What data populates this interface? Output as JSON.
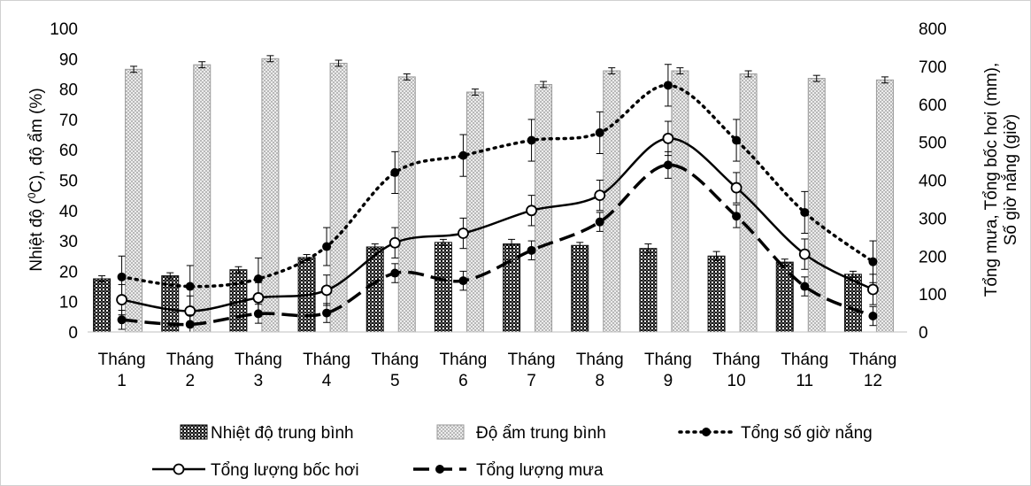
{
  "chart_data": {
    "type": "bar",
    "categories": [
      [
        "Tháng",
        "1"
      ],
      [
        "Tháng",
        "2"
      ],
      [
        "Tháng",
        "3"
      ],
      [
        "Tháng",
        "4"
      ],
      [
        "Tháng",
        "5"
      ],
      [
        "Tháng",
        "6"
      ],
      [
        "Tháng",
        "7"
      ],
      [
        "Tháng",
        "8"
      ],
      [
        "Tháng",
        "9"
      ],
      [
        "Tháng",
        "10"
      ],
      [
        "Tháng",
        "11"
      ],
      [
        "Tháng",
        "12"
      ]
    ],
    "y_left": {
      "title_parts": [
        "Nhiệt độ (",
        "0",
        "C), độ ẩm (%)"
      ],
      "range": [
        0,
        100
      ],
      "ticks": [
        "0",
        "10",
        "20",
        "30",
        "40",
        "50",
        "60",
        "70",
        "80",
        "90",
        "100"
      ]
    },
    "y_right": {
      "title_lines": [
        "Tổng mưa, Tổng bốc hơi (mm),",
        "Số giờ nắng (giờ)"
      ],
      "range": [
        0,
        800
      ],
      "ticks": [
        "0",
        "100",
        "200",
        "300",
        "400",
        "500",
        "600",
        "700",
        "800"
      ]
    },
    "grid": false,
    "legend_position": "bottom",
    "colors": {
      "dark_bar": "#1a1a1a",
      "light_bar": "#cfcfcf",
      "line": "#000000"
    },
    "series": [
      {
        "name": "Nhiệt độ trung bình",
        "type": "bar",
        "axis": "left",
        "style": "dark-hatch",
        "values": [
          17.5,
          18.5,
          20.5,
          24.5,
          28.0,
          29.5,
          29.0,
          28.5,
          27.5,
          25.0,
          23.0,
          19.0
        ],
        "errors": [
          1.0,
          1.0,
          1.0,
          1.0,
          1.0,
          1.0,
          1.5,
          1.0,
          1.5,
          1.5,
          1.0,
          1.0
        ]
      },
      {
        "name": "Độ ẩm trung bình",
        "type": "bar",
        "axis": "left",
        "style": "light-hatch",
        "values": [
          86.5,
          88.0,
          90.0,
          88.5,
          84.0,
          79.0,
          81.5,
          86.0,
          86.0,
          85.0,
          83.5,
          83.0
        ],
        "errors": [
          1.0,
          1.0,
          1.0,
          1.0,
          1.0,
          1.0,
          1.0,
          1.0,
          1.0,
          1.0,
          1.0,
          1.0
        ]
      },
      {
        "name": "Tổng số giờ nắng",
        "type": "line",
        "axis": "right",
        "style": "dotted",
        "values": [
          145,
          120,
          140,
          225,
          420,
          465,
          505,
          525,
          650,
          505,
          315,
          185
        ],
        "errors": [
          55,
          55,
          55,
          50,
          55,
          55,
          55,
          55,
          55,
          55,
          55,
          55
        ]
      },
      {
        "name": "Tổng lượng bốc hơi",
        "type": "line",
        "axis": "right",
        "style": "solid",
        "values": [
          85,
          55,
          90,
          110,
          235,
          260,
          320,
          360,
          510,
          380,
          205,
          112
        ],
        "errors": [
          40,
          40,
          40,
          40,
          40,
          40,
          40,
          40,
          45,
          40,
          40,
          40
        ]
      },
      {
        "name": "Tổng lượng mưa",
        "type": "line",
        "axis": "right",
        "style": "dashed",
        "values": [
          32,
          20,
          48,
          50,
          155,
          135,
          215,
          290,
          440,
          305,
          120,
          42
        ],
        "errors": [
          25,
          25,
          25,
          25,
          25,
          25,
          25,
          25,
          35,
          30,
          25,
          25
        ]
      }
    ]
  }
}
